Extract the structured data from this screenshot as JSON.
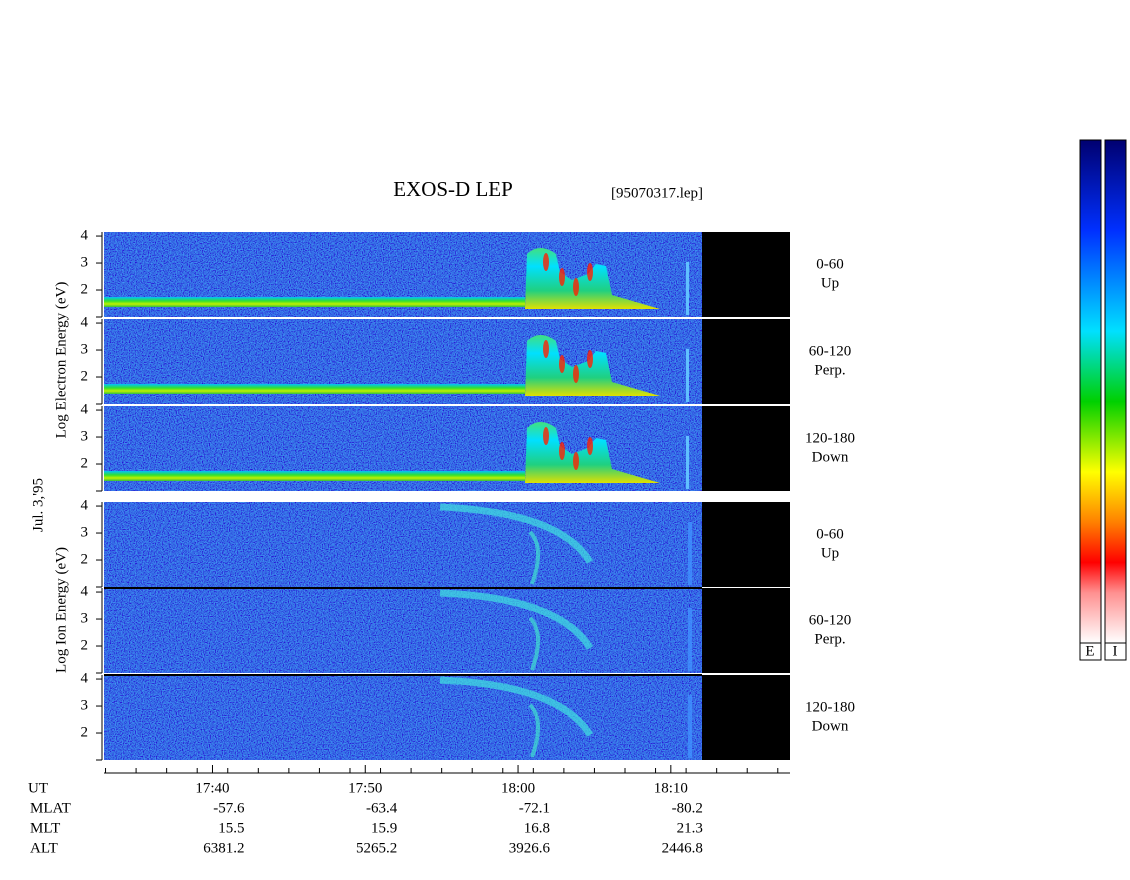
{
  "header": {
    "title": "EXOS-D LEP",
    "file": "[95070317.lep]"
  },
  "date": "Jul. 3,'95",
  "electron_label": "Log Electron Energy (eV)",
  "ion_label": "Log Ion Energy (eV)",
  "pitch_ranges": [
    {
      "angle": "0-60",
      "direction": "Up"
    },
    {
      "angle": "60-120",
      "direction": "Perp."
    },
    {
      "angle": "120-180",
      "direction": "Down"
    }
  ],
  "energy_axis": {
    "ylim": [
      1,
      4.15
    ],
    "yticks": [
      2,
      3,
      4
    ]
  },
  "time_axis": {
    "label": "UT",
    "xlim": [
      1052.9,
      1097.8
    ],
    "xticks": [
      {
        "value": 1060,
        "label": "17:40"
      },
      {
        "value": 1070,
        "label": "17:50"
      },
      {
        "value": 1080,
        "label": "18:00"
      },
      {
        "value": 1090,
        "label": "18:10"
      }
    ],
    "minor_ticks": [
      1053,
      1055,
      1057,
      1059,
      1061,
      1063,
      1065,
      1067,
      1069,
      1071,
      1073,
      1075,
      1077,
      1079,
      1081,
      1083,
      1085,
      1087,
      1089,
      1091,
      1093,
      1095,
      1097
    ]
  },
  "orbit": [
    {
      "label": "MLAT",
      "values": [
        -57.6,
        -63.4,
        -72.1,
        -80.2
      ]
    },
    {
      "label": "MLT",
      "values": [
        15.5,
        15.9,
        16.8,
        21.3
      ]
    },
    {
      "label": "ALT",
      "values": [
        6381.2,
        5265.2,
        3926.6,
        2446.8
      ]
    }
  ],
  "colorbar": {
    "labels": [
      "E",
      "I"
    ]
  }
}
